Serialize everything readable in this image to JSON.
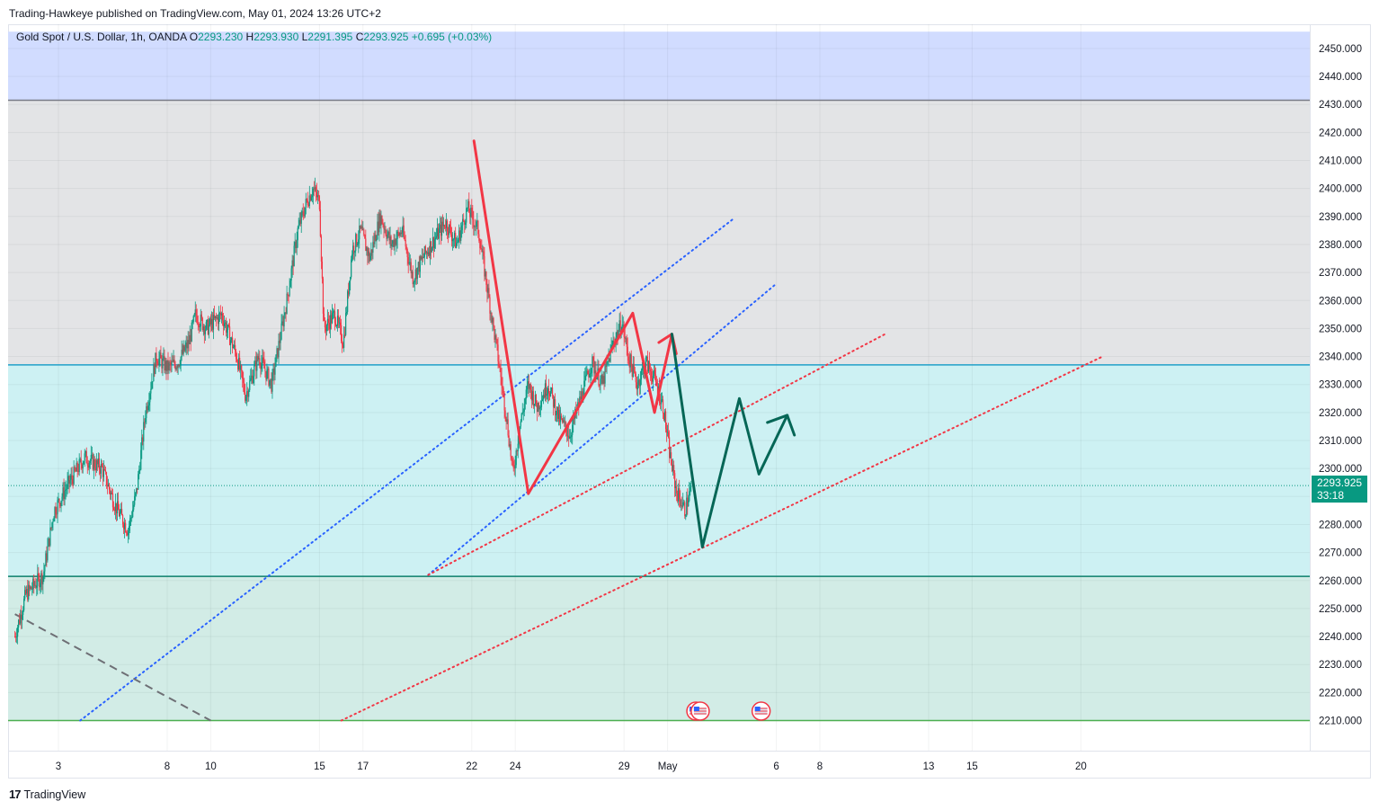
{
  "header": {
    "publisher": "Trading-Hawkeye published on TradingView.com, May 01, 2024 13:26 UTC+2"
  },
  "legend": {
    "symbol": "Gold Spot / U.S. Dollar, 1h, OANDA",
    "open_label": "O",
    "open_value": "2293.230",
    "high_label": "H",
    "high_value": "2293.930",
    "low_label": "L",
    "low_value": "2291.395",
    "close_label": "C",
    "close_value": "2293.925",
    "change": "+0.695 (+0.03%)"
  },
  "price_tag": {
    "price": "2293.925",
    "countdown": "33:18"
  },
  "footer": {
    "logo_icon": "tradingview-logo-icon",
    "brand": "TradingView"
  },
  "colors": {
    "zone_top": "#d1dcff",
    "zone_mid": "#e3e4e6",
    "zone_low": "#cdf1f3",
    "zone_bottom": "#d2ece6",
    "candle_up": "#089981",
    "candle_down": "#f23645",
    "red_path": "#f23645",
    "green_path": "#056656",
    "blue_dotted": "#2962ff",
    "red_dotted": "#f23645"
  },
  "chart_data": {
    "type": "candlestick",
    "title": "Gold Spot / U.S. Dollar, 1h, OANDA",
    "ylim": [
      2206.5,
      2456
    ],
    "y_ticks": [
      2210,
      2220,
      2230,
      2240,
      2250,
      2260,
      2270,
      2280,
      2290,
      2300,
      2310,
      2320,
      2330,
      2340,
      2350,
      2360,
      2370,
      2380,
      2390,
      2400,
      2410,
      2420,
      2430,
      2440,
      2450
    ],
    "x_ticks": [
      {
        "label": "3",
        "t": 2
      },
      {
        "label": "8",
        "t": 7
      },
      {
        "label": "10",
        "t": 9
      },
      {
        "label": "15",
        "t": 14
      },
      {
        "label": "17",
        "t": 16
      },
      {
        "label": "22",
        "t": 21
      },
      {
        "label": "24",
        "t": 23
      },
      {
        "label": "29",
        "t": 28
      },
      {
        "label": "May",
        "t": 30
      },
      {
        "label": "6",
        "t": 35
      },
      {
        "label": "8",
        "t": 37
      },
      {
        "label": "13",
        "t": 42
      },
      {
        "label": "15",
        "t": 44
      },
      {
        "label": "20",
        "t": 49
      }
    ],
    "grid": true,
    "zones": [
      {
        "name": "top",
        "from": 2431.5,
        "to": 2456
      },
      {
        "name": "upper",
        "from": 2337,
        "to": 2431.5
      },
      {
        "name": "middle",
        "from": 2261.5,
        "to": 2337
      },
      {
        "name": "lower",
        "from": 2210,
        "to": 2261.5
      }
    ],
    "horizontal_levels": [
      {
        "price": 2431.5,
        "color": "#787b86"
      },
      {
        "price": 2337,
        "color": "#22a0c8"
      },
      {
        "price": 2261.5,
        "color": "#0b7f6b"
      },
      {
        "price": 2210,
        "color": "#4caf50"
      },
      {
        "price": 2293.925,
        "color": "#089981",
        "style": "dotted"
      }
    ],
    "candle_waypoints": [
      {
        "t": 0.0,
        "price": 2240
      },
      {
        "t": 0.5,
        "price": 2255
      },
      {
        "t": 1.3,
        "price": 2262
      },
      {
        "t": 1.8,
        "price": 2285
      },
      {
        "t": 2.5,
        "price": 2295
      },
      {
        "t": 3.2,
        "price": 2304
      },
      {
        "t": 4.0,
        "price": 2300
      },
      {
        "t": 4.6,
        "price": 2287
      },
      {
        "t": 5.2,
        "price": 2278
      },
      {
        "t": 5.6,
        "price": 2292
      },
      {
        "t": 6.0,
        "price": 2320
      },
      {
        "t": 6.5,
        "price": 2340
      },
      {
        "t": 7.0,
        "price": 2336
      },
      {
        "t": 7.5,
        "price": 2338
      },
      {
        "t": 8.0,
        "price": 2345
      },
      {
        "t": 8.3,
        "price": 2355
      },
      {
        "t": 8.8,
        "price": 2350
      },
      {
        "t": 9.5,
        "price": 2355
      },
      {
        "t": 10.2,
        "price": 2340
      },
      {
        "t": 10.6,
        "price": 2326
      },
      {
        "t": 11.2,
        "price": 2340
      },
      {
        "t": 11.8,
        "price": 2330
      },
      {
        "t": 12.5,
        "price": 2360
      },
      {
        "t": 13.0,
        "price": 2385
      },
      {
        "t": 13.4,
        "price": 2395
      },
      {
        "t": 13.7,
        "price": 2400
      },
      {
        "t": 14.0,
        "price": 2395
      },
      {
        "t": 14.2,
        "price": 2350
      },
      {
        "t": 14.7,
        "price": 2355
      },
      {
        "t": 15.1,
        "price": 2345
      },
      {
        "t": 15.5,
        "price": 2378
      },
      {
        "t": 15.9,
        "price": 2385
      },
      {
        "t": 16.3,
        "price": 2375
      },
      {
        "t": 16.8,
        "price": 2390
      },
      {
        "t": 17.3,
        "price": 2380
      },
      {
        "t": 17.8,
        "price": 2385
      },
      {
        "t": 18.3,
        "price": 2368
      },
      {
        "t": 18.8,
        "price": 2376
      },
      {
        "t": 19.3,
        "price": 2382
      },
      {
        "t": 19.8,
        "price": 2388
      },
      {
        "t": 20.3,
        "price": 2380
      },
      {
        "t": 20.8,
        "price": 2393
      },
      {
        "t": 21.3,
        "price": 2385
      },
      {
        "t": 21.8,
        "price": 2360
      },
      {
        "t": 22.2,
        "price": 2340
      },
      {
        "t": 22.6,
        "price": 2318
      },
      {
        "t": 22.9,
        "price": 2298
      },
      {
        "t": 23.2,
        "price": 2315
      },
      {
        "t": 23.6,
        "price": 2330
      },
      {
        "t": 24.0,
        "price": 2322
      },
      {
        "t": 24.5,
        "price": 2330
      },
      {
        "t": 25.0,
        "price": 2318
      },
      {
        "t": 25.5,
        "price": 2312
      },
      {
        "t": 26.0,
        "price": 2325
      },
      {
        "t": 26.5,
        "price": 2338
      },
      {
        "t": 27.0,
        "price": 2330
      },
      {
        "t": 27.5,
        "price": 2345
      },
      {
        "t": 27.9,
        "price": 2352
      },
      {
        "t": 28.2,
        "price": 2340
      },
      {
        "t": 28.6,
        "price": 2330
      },
      {
        "t": 29.0,
        "price": 2338
      },
      {
        "t": 29.4,
        "price": 2332
      },
      {
        "t": 29.8,
        "price": 2322
      },
      {
        "t": 30.1,
        "price": 2305
      },
      {
        "t": 30.4,
        "price": 2292
      },
      {
        "t": 30.8,
        "price": 2285
      },
      {
        "t": 31.1,
        "price": 2293.925
      }
    ],
    "annotations": {
      "red_zigzag": [
        {
          "t": 21.1,
          "price": 2417
        },
        {
          "t": 23.6,
          "price": 2291
        },
        {
          "t": 28.4,
          "price": 2355.5
        },
        {
          "t": 29.4,
          "price": 2320
        },
        {
          "t": 30.2,
          "price": 2348
        },
        {
          "t": 29.6,
          "price": 2345
        },
        {
          "t": 30.2,
          "price": 2348
        },
        {
          "t": 30.4,
          "price": 2341
        }
      ],
      "green_projection": [
        {
          "t": 30.2,
          "price": 2348
        },
        {
          "t": 31.6,
          "price": 2272
        },
        {
          "t": 33.3,
          "price": 2325
        },
        {
          "t": 34.2,
          "price": 2298
        },
        {
          "t": 35.5,
          "price": 2319
        },
        {
          "t": 35.8,
          "price": 2313
        }
      ],
      "green_projection_head": {
        "t": 35.5,
        "price": 2319
      },
      "blue_dotted_lines": [
        {
          "from": {
            "t": 3.0,
            "price": 2210
          },
          "to": {
            "t": 33.0,
            "price": 2389
          }
        },
        {
          "from": {
            "t": 19.0,
            "price": 2262
          },
          "to": {
            "t": 35.0,
            "price": 2366
          }
        }
      ],
      "red_dotted_lines": [
        {
          "from": {
            "t": 19.0,
            "price": 2262
          },
          "to": {
            "t": 40.0,
            "price": 2348
          }
        },
        {
          "from": {
            "t": 15.0,
            "price": 2210
          },
          "to": {
            "t": 50.0,
            "price": 2340
          }
        }
      ],
      "gray_dashed_line": {
        "from": {
          "t": 0.0,
          "price": 2248
        },
        "to": {
          "t": 9.0,
          "price": 2210
        }
      },
      "event_markers": [
        {
          "t": 31.3,
          "icon": "us-flag-icon"
        },
        {
          "t": 31.5,
          "icon": "us-flag-icon"
        },
        {
          "t": 34.3,
          "icon": "us-flag-icon"
        }
      ]
    }
  }
}
